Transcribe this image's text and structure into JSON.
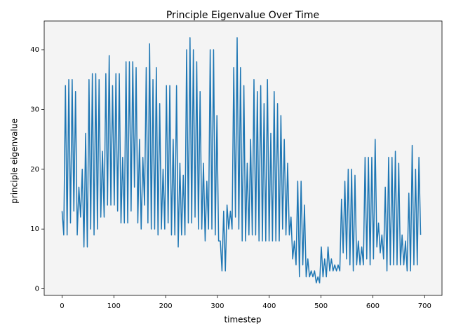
{
  "chart_data": {
    "type": "line",
    "title": "Principle Eigenvalue Over Time",
    "x_label": "timestep",
    "y_label": "principle eigenvalue",
    "x": [
      0,
      3.25,
      6.5,
      9.75,
      13,
      16.25,
      19.5,
      22.75,
      26,
      29.25,
      32.5,
      35.75,
      39,
      42.25,
      45.5,
      48.75,
      52,
      55.25,
      58.5,
      61.75,
      65,
      68.25,
      71.5,
      74.75,
      78,
      81.25,
      84.5,
      87.75,
      91,
      94.25,
      97.5,
      100.75,
      104,
      107.25,
      110.5,
      113.75,
      117,
      120.25,
      123.5,
      126.75,
      130,
      133.25,
      136.5,
      139.75,
      143,
      146.25,
      149.5,
      152.75,
      156,
      159.25,
      162.5,
      165.75,
      169,
      172.25,
      175.5,
      178.75,
      182,
      185.25,
      188.5,
      191.75,
      195,
      198.25,
      201.5,
      204.75,
      208,
      211.25,
      214.5,
      217.75,
      221,
      224.25,
      227.5,
      230.75,
      234,
      237.25,
      240.5,
      243.75,
      247,
      250.25,
      253.5,
      256.75,
      260,
      263.25,
      266.5,
      269.75,
      273,
      276.25,
      279.5,
      282.75,
      286,
      289.25,
      292.5,
      295.75,
      299,
      302.25,
      305.5,
      308.75,
      312,
      315.25,
      318.5,
      321.75,
      325,
      328.25,
      331.5,
      334.75,
      338,
      341.25,
      344.5,
      347.75,
      351,
      354.25,
      357.5,
      360.75,
      364,
      367.25,
      370.5,
      373.75,
      377,
      380.25,
      383.5,
      386.75,
      390,
      393.25,
      396.5,
      399.75,
      403,
      406.25,
      409.5,
      412.75,
      416,
      419.25,
      422.5,
      425.75,
      429,
      432.25,
      435.5,
      438.75,
      442,
      445.25,
      448.5,
      451.75,
      455,
      458.25,
      461.5,
      464.75,
      468,
      471.25,
      474.5,
      477.75,
      481,
      484.25,
      487.5,
      490.75,
      494,
      497.25,
      500.5,
      503.75,
      507,
      510.25,
      513.5,
      516.75,
      520,
      523.25,
      526.5,
      529.75,
      533,
      536.25,
      539.5,
      542.75,
      546,
      549.25,
      552.5,
      555.75,
      559,
      562.25,
      565.5,
      568.75,
      572,
      575.25,
      578.5,
      581.75,
      585,
      588.25,
      591.5,
      594.75,
      598,
      601.25,
      604.5,
      607.75,
      611,
      614.25,
      617.5,
      620.75,
      624,
      627.25,
      630.5,
      633.75,
      637,
      640.25,
      643.5,
      646.75,
      650,
      653.25,
      656.5,
      659.75,
      663,
      666.25,
      669.5,
      672.75,
      676,
      679.25,
      682.5,
      685.75,
      689,
      692.25
    ],
    "series": [
      {
        "color": "#1f77b4",
        "values": [
          13,
          9,
          34,
          9,
          35,
          11,
          35,
          13,
          33,
          9,
          17,
          12,
          20,
          7,
          26,
          7,
          35,
          10,
          36,
          9,
          36,
          10,
          35,
          12,
          23,
          12,
          36,
          14,
          39,
          14,
          34,
          14,
          36,
          13,
          36,
          11,
          22,
          11,
          38,
          11,
          38,
          13,
          38,
          17,
          37,
          11,
          25,
          10,
          22,
          14,
          37,
          11,
          41,
          10,
          35,
          10,
          37,
          9,
          31,
          10,
          20,
          10,
          34,
          11,
          34,
          9,
          25,
          9,
          34,
          7,
          21,
          9,
          19,
          9,
          40,
          11,
          42,
          11,
          40,
          12,
          38,
          10,
          33,
          10,
          21,
          8,
          18,
          10,
          40,
          10,
          40,
          9,
          29,
          8,
          8,
          3,
          13,
          3,
          14,
          10,
          13,
          10,
          37,
          12,
          42,
          10,
          37,
          8,
          34,
          8,
          21,
          9,
          25,
          9,
          35,
          9,
          33,
          8,
          34,
          8,
          31,
          8,
          35,
          8,
          26,
          8,
          33,
          8,
          31,
          8,
          29,
          10,
          25,
          9,
          21,
          9,
          12,
          5,
          8,
          4,
          18,
          2,
          18,
          4,
          14,
          2,
          5,
          2,
          3,
          2,
          3,
          1,
          2,
          1,
          7,
          2,
          5,
          2,
          7,
          3,
          5,
          3,
          4,
          3,
          4,
          3,
          15,
          6,
          18,
          5,
          20,
          4,
          20,
          3,
          19,
          4,
          8,
          4,
          7,
          4,
          22,
          5,
          22,
          4,
          22,
          5,
          25,
          7,
          11,
          6,
          9,
          5,
          17,
          3,
          22,
          4,
          22,
          4,
          23,
          4,
          21,
          4,
          9,
          4,
          8,
          3,
          16,
          3,
          24,
          4,
          20,
          4,
          22,
          9
        ]
      }
    ],
    "xlim": [
      -34.5,
      733.5
    ],
    "ylim": [
      -1.1,
      44.8
    ],
    "xticks": [
      0,
      100,
      200,
      300,
      400,
      500,
      600,
      700
    ],
    "yticks": [
      0,
      10,
      20,
      30,
      40
    ]
  }
}
